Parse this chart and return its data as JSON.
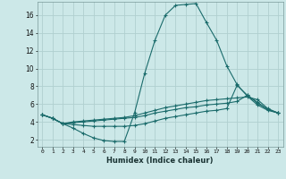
{
  "xlabel": "Humidex (Indice chaleur)",
  "background_color": "#cce8e8",
  "grid_color": "#b0d0d0",
  "line_color": "#1a6b6b",
  "x_ticks": [
    0,
    1,
    2,
    3,
    4,
    5,
    6,
    7,
    8,
    9,
    10,
    11,
    12,
    13,
    14,
    15,
    16,
    17,
    18,
    19,
    20,
    21,
    22,
    23
  ],
  "y_ticks": [
    2,
    4,
    6,
    8,
    10,
    12,
    14,
    16
  ],
  "ylim": [
    1.2,
    17.5
  ],
  "xlim": [
    -0.5,
    23.5
  ],
  "lines": [
    {
      "x": [
        0,
        1,
        2,
        3,
        4,
        5,
        6,
        7,
        8,
        9,
        10,
        11,
        12,
        13,
        14,
        15,
        16,
        17,
        18,
        19,
        20,
        21,
        22,
        23
      ],
      "y": [
        4.8,
        4.4,
        3.8,
        3.3,
        2.7,
        2.2,
        1.9,
        1.8,
        1.8,
        5.0,
        9.5,
        13.2,
        16.0,
        17.1,
        17.2,
        17.3,
        15.2,
        13.2,
        10.3,
        8.2,
        6.9,
        5.9,
        5.3,
        5.0
      ]
    },
    {
      "x": [
        0,
        1,
        2,
        3,
        4,
        5,
        6,
        7,
        8,
        9,
        10,
        11,
        12,
        13,
        14,
        15,
        16,
        17,
        18,
        19,
        20,
        21,
        22,
        23
      ],
      "y": [
        4.8,
        4.4,
        3.8,
        4.0,
        4.1,
        4.2,
        4.3,
        4.4,
        4.5,
        4.7,
        5.0,
        5.3,
        5.6,
        5.8,
        6.0,
        6.2,
        6.4,
        6.5,
        6.6,
        6.7,
        6.8,
        6.5,
        5.5,
        5.0
      ]
    },
    {
      "x": [
        0,
        1,
        2,
        3,
        4,
        5,
        6,
        7,
        8,
        9,
        10,
        11,
        12,
        13,
        14,
        15,
        16,
        17,
        18,
        19,
        20,
        21,
        22,
        23
      ],
      "y": [
        4.8,
        4.4,
        3.8,
        3.9,
        4.0,
        4.1,
        4.2,
        4.3,
        4.4,
        4.5,
        4.7,
        5.0,
        5.2,
        5.4,
        5.6,
        5.7,
        5.9,
        6.0,
        6.1,
        6.3,
        7.0,
        6.2,
        5.4,
        5.0
      ]
    },
    {
      "x": [
        0,
        1,
        2,
        3,
        4,
        5,
        6,
        7,
        8,
        9,
        10,
        11,
        12,
        13,
        14,
        15,
        16,
        17,
        18,
        19,
        20,
        21,
        22,
        23
      ],
      "y": [
        4.8,
        4.4,
        3.8,
        3.7,
        3.6,
        3.5,
        3.5,
        3.5,
        3.5,
        3.6,
        3.8,
        4.1,
        4.4,
        4.6,
        4.8,
        5.0,
        5.2,
        5.3,
        5.5,
        8.1,
        7.0,
        6.1,
        5.4,
        5.0
      ]
    }
  ]
}
